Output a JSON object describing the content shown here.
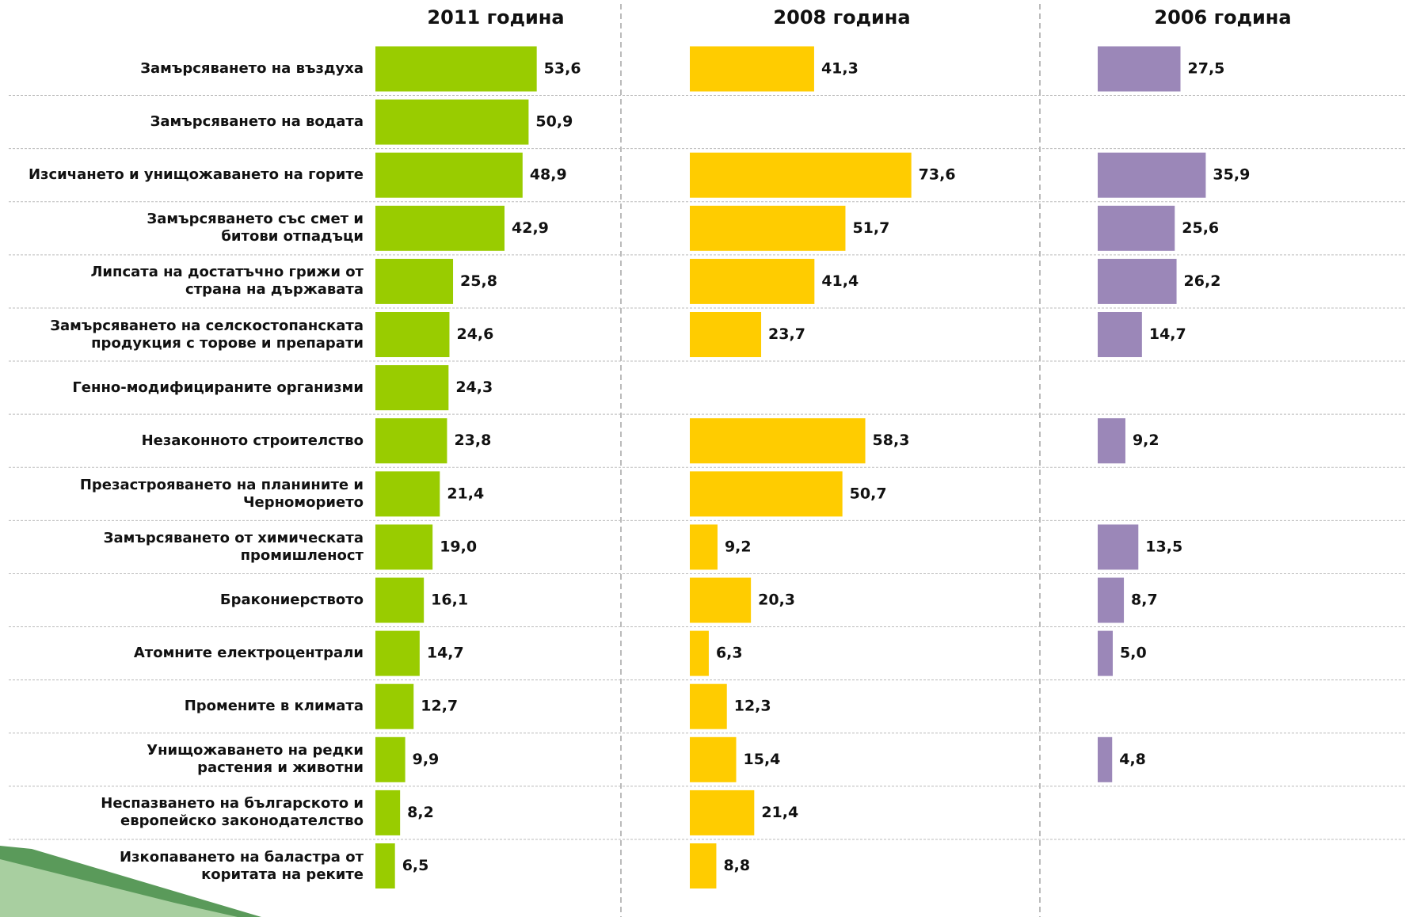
{
  "chart_data": {
    "type": "bar",
    "categories": [
      "Замърсяването на въздуха",
      "Замърсяването на водата",
      "Изсичането и унищожаването на горите",
      "Замърсяването със смет и\nбитови отпадъци",
      "Липсата на достатъчно грижи от\nстрана на държавата",
      "Замърсяването на селскостопанската\nпродукция с торове и препарати",
      "Генно-модифицираните организми",
      "Незаконното строителство",
      "Презастрояването на планините и\nЧерноморието",
      "Замърсяването от химическата\nпромишленост",
      "Бракониерството",
      "Атомните електроцентрали",
      "Промените в климата",
      "Унищожаването на редки\nрастения и животни",
      "Неспазването на българското и\nевропейско законодателство",
      "Изкопаването на баластра от\nкоритата на реките"
    ],
    "series": [
      {
        "name": "2011 година",
        "color": "#99cc00",
        "values": [
          53.6,
          50.9,
          48.9,
          42.9,
          25.8,
          24.6,
          24.3,
          23.8,
          21.4,
          19.0,
          16.1,
          14.7,
          12.7,
          9.9,
          8.2,
          6.5
        ],
        "value_labels": [
          "53,6",
          "50,9",
          "48,9",
          "42,9",
          "25,8",
          "24,6",
          "24,3",
          "23,8",
          "21,4",
          "19,0",
          "16,1",
          "14,7",
          "12,7",
          "9,9",
          "8,2",
          "6,5"
        ]
      },
      {
        "name": "2008 година",
        "color": "#ffcc00",
        "values": [
          41.3,
          null,
          73.6,
          51.7,
          41.4,
          23.7,
          null,
          58.3,
          50.7,
          9.2,
          20.3,
          6.3,
          12.3,
          15.4,
          21.4,
          8.8
        ],
        "value_labels": [
          "41,3",
          null,
          "73,6",
          "51,7",
          "41,4",
          "23,7",
          null,
          "58,3",
          "50,7",
          "9,2",
          "20,3",
          "6,3",
          "12,3",
          "15,4",
          "21,4",
          "8,8"
        ]
      },
      {
        "name": "2006 година",
        "color": "#9b87b8",
        "values": [
          27.5,
          null,
          35.9,
          25.6,
          26.2,
          14.7,
          null,
          9.2,
          null,
          13.5,
          8.7,
          5.0,
          null,
          4.8,
          null,
          null
        ],
        "value_labels": [
          "27,5",
          null,
          "35,9",
          "25,6",
          "26,2",
          "14,7",
          null,
          "9,2",
          null,
          "13,5",
          "8,7",
          "5,0",
          null,
          "4,8",
          null,
          null
        ]
      }
    ]
  }
}
